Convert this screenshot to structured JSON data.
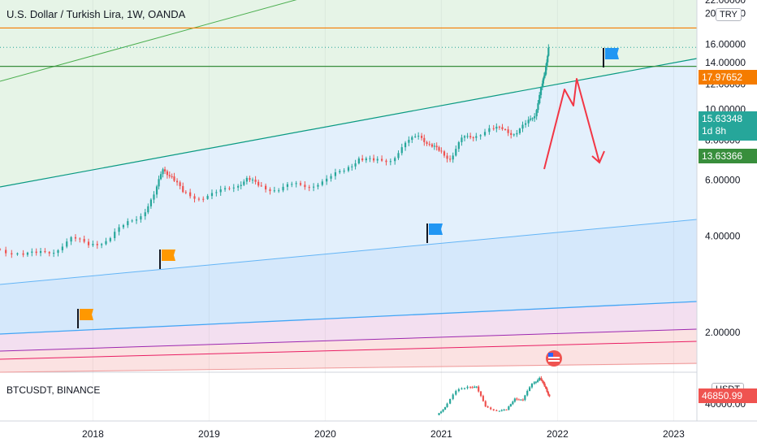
{
  "header": {
    "title": "U.S. Dollar / Turkish Lira, 1W, OANDA",
    "sub_title": "BTCUSDT, BINANCE"
  },
  "price_axis": {
    "currency": "TRY",
    "sub_currency": "USDT",
    "labels": [
      "22.00000",
      "20.00000",
      "16.00000",
      "14.00000",
      "12.00000",
      "10.00000",
      "8.00000",
      "6.00000",
      "4.00000",
      "2.00000"
    ],
    "sub_labels": [
      "40000.00"
    ]
  },
  "tags": {
    "resistance": {
      "value": "17.97652",
      "color": "#f57c00"
    },
    "current": {
      "value": "15.63348",
      "countdown": "1d 8h",
      "color": "#26a69a"
    },
    "support": {
      "value": "13.63366",
      "color": "#388e3c"
    },
    "btc": {
      "value": "46850.99",
      "color": "#ef5350"
    }
  },
  "time_axis": [
    "2018",
    "2019",
    "2020",
    "2021",
    "2022",
    "2023"
  ],
  "colors": {
    "up": "#26a69a",
    "down": "#ef5350",
    "flag_orange": "#ff9800",
    "flag_blue": "#2196f3",
    "arrow": "#f23645"
  },
  "chart_data": {
    "type": "candlestick",
    "title": "U.S. Dollar / Turkish Lira, 1W, OANDA",
    "ylim": [
      1.5,
      22
    ],
    "x_range": [
      2017.2,
      2023.2
    ],
    "series": [
      {
        "name": "U.S. Dollar / Turkish Lira",
        "points": [
          {
            "x": 2017.2,
            "y": 3.65
          },
          {
            "x": 2017.4,
            "y": 3.55
          },
          {
            "x": 2017.55,
            "y": 3.5
          },
          {
            "x": 2017.7,
            "y": 3.62
          },
          {
            "x": 2017.85,
            "y": 3.9
          },
          {
            "x": 2018.0,
            "y": 3.8
          },
          {
            "x": 2018.15,
            "y": 3.85
          },
          {
            "x": 2018.3,
            "y": 4.3
          },
          {
            "x": 2018.45,
            "y": 4.7
          },
          {
            "x": 2018.55,
            "y": 5.3
          },
          {
            "x": 2018.62,
            "y": 6.6
          },
          {
            "x": 2018.7,
            "y": 6.1
          },
          {
            "x": 2018.8,
            "y": 5.5
          },
          {
            "x": 2018.95,
            "y": 5.3
          },
          {
            "x": 2019.1,
            "y": 5.4
          },
          {
            "x": 2019.25,
            "y": 5.8
          },
          {
            "x": 2019.35,
            "y": 6.0
          },
          {
            "x": 2019.45,
            "y": 5.8
          },
          {
            "x": 2019.6,
            "y": 5.6
          },
          {
            "x": 2019.75,
            "y": 5.75
          },
          {
            "x": 2019.9,
            "y": 5.8
          },
          {
            "x": 2020.05,
            "y": 5.95
          },
          {
            "x": 2020.2,
            "y": 6.5
          },
          {
            "x": 2020.32,
            "y": 7.0
          },
          {
            "x": 2020.45,
            "y": 6.85
          },
          {
            "x": 2020.6,
            "y": 7.0
          },
          {
            "x": 2020.72,
            "y": 7.7
          },
          {
            "x": 2020.83,
            "y": 8.4
          },
          {
            "x": 2020.92,
            "y": 7.7
          },
          {
            "x": 2021.0,
            "y": 7.4
          },
          {
            "x": 2021.1,
            "y": 7.05
          },
          {
            "x": 2021.2,
            "y": 8.0
          },
          {
            "x": 2021.3,
            "y": 8.3
          },
          {
            "x": 2021.45,
            "y": 8.6
          },
          {
            "x": 2021.55,
            "y": 8.7
          },
          {
            "x": 2021.65,
            "y": 8.4
          },
          {
            "x": 2021.75,
            "y": 8.9
          },
          {
            "x": 2021.82,
            "y": 9.7
          },
          {
            "x": 2021.87,
            "y": 11.5
          },
          {
            "x": 2021.9,
            "y": 13.0
          },
          {
            "x": 2021.93,
            "y": 15.6
          }
        ]
      },
      {
        "name": "BTCUSDT, BINANCE",
        "points": [
          {
            "x": 2020.98,
            "y": 29000
          },
          {
            "x": 2021.05,
            "y": 37000
          },
          {
            "x": 2021.15,
            "y": 52000
          },
          {
            "x": 2021.25,
            "y": 58000
          },
          {
            "x": 2021.32,
            "y": 56000
          },
          {
            "x": 2021.4,
            "y": 38000
          },
          {
            "x": 2021.5,
            "y": 33000
          },
          {
            "x": 2021.58,
            "y": 34000
          },
          {
            "x": 2021.65,
            "y": 46000
          },
          {
            "x": 2021.72,
            "y": 43000
          },
          {
            "x": 2021.8,
            "y": 61000
          },
          {
            "x": 2021.86,
            "y": 65000
          },
          {
            "x": 2021.9,
            "y": 57000
          },
          {
            "x": 2021.94,
            "y": 48000
          }
        ]
      }
    ],
    "levels": [
      17.97652,
      15.63348,
      13.63366
    ]
  }
}
